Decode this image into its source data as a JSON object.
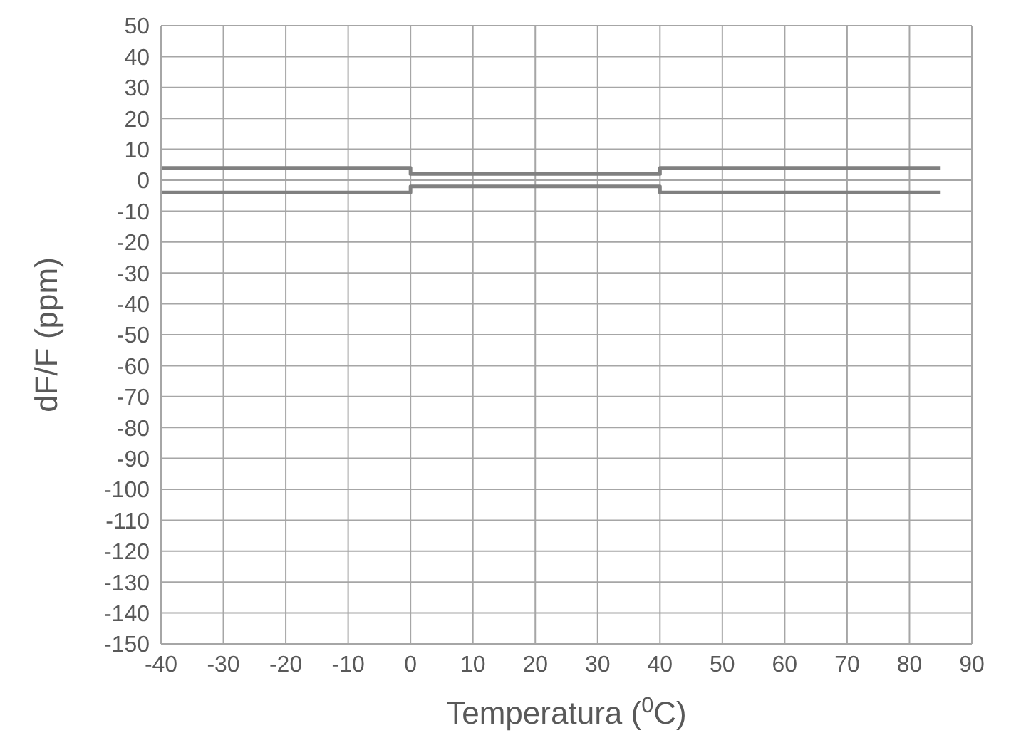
{
  "chart_data": {
    "type": "line",
    "xlabel": "Temperatura ($^{0}$C)",
    "ylabel": "dF/F (ppm)",
    "series": [
      {
        "color": "#808080",
        "x": [
          -40,
          0,
          0,
          40,
          40,
          85
        ],
        "values": [
          4,
          4,
          2,
          2,
          4,
          4
        ]
      },
      {
        "color": "#808080",
        "x": [
          -40,
          0,
          0,
          40,
          40,
          85
        ],
        "values": [
          -4,
          -4,
          -2,
          -2,
          -4,
          -4
        ]
      }
    ],
    "xlim": [
      -40,
      90
    ],
    "xticks": [
      -40,
      -30,
      -20,
      -10,
      0,
      10,
      20,
      30,
      40,
      50,
      60,
      70,
      80,
      90
    ],
    "ylim": [
      -150,
      50
    ],
    "yticks": [
      -150,
      -140,
      -130,
      -120,
      -110,
      -100,
      -90,
      -80,
      -70,
      -60,
      -50,
      -40,
      -30,
      -20,
      -10,
      0,
      10,
      20,
      30,
      40,
      50
    ],
    "grid": true,
    "marker": "none",
    "line_style": "solid",
    "legend": false
  }
}
